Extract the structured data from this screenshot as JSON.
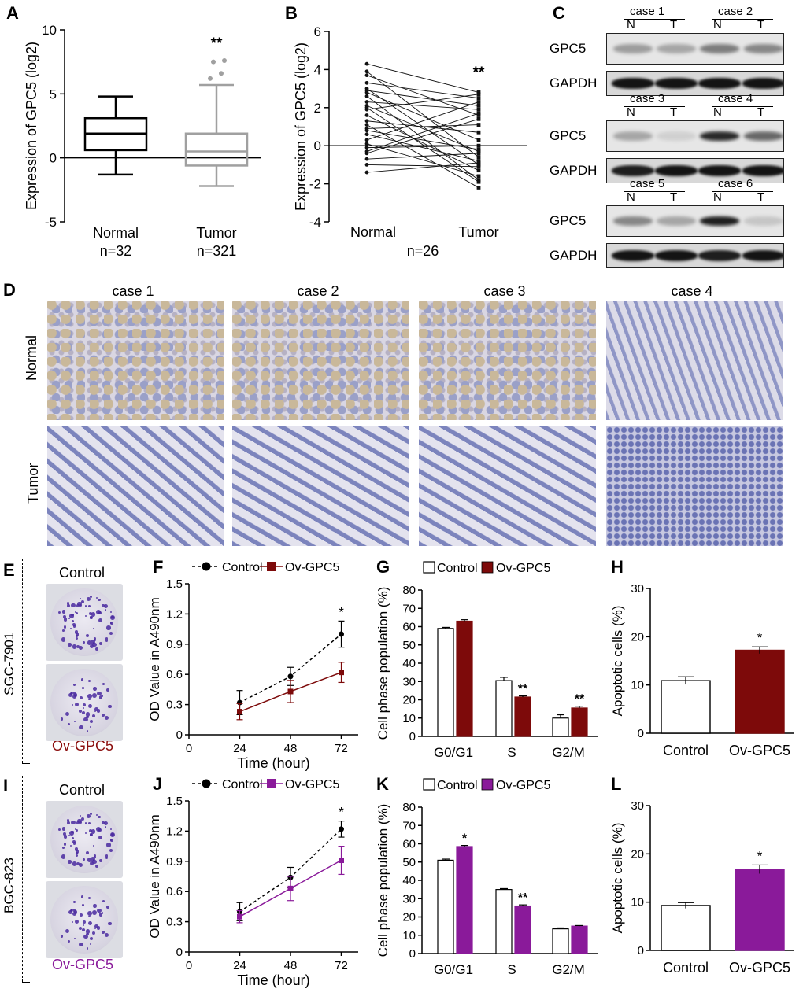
{
  "panels": {
    "A": {
      "label": "A",
      "ylabel": "Expression of GPC5 (log2)",
      "yticks": [
        "10",
        "5",
        "0",
        "-5"
      ],
      "groups": [
        {
          "name": "Normal",
          "n": "n=32",
          "min": -1.3,
          "q1": 0.6,
          "median": 1.9,
          "q3": 3.1,
          "max": 4.8
        },
        {
          "name": "Tumor",
          "n": "n=321",
          "min": -2.2,
          "q1": -0.6,
          "median": 0.5,
          "q3": 1.9,
          "max": 5.7,
          "outliers": [
            6.2,
            6.6,
            7.5,
            7.6
          ]
        }
      ],
      "sig": "**",
      "chart_data": {
        "type": "box",
        "categories": [
          "Normal",
          "Tumor"
        ],
        "ylim": [
          -5,
          10
        ],
        "ylabel": "Expression of GPC5 (log2)"
      }
    },
    "B": {
      "label": "B",
      "ylabel": "Expression of GPC5 (log2)",
      "yticks": [
        "6",
        "4",
        "2",
        "0",
        "-2",
        "-4"
      ],
      "xlabels": [
        "Normal",
        "Tumor"
      ],
      "n": "n=26",
      "sig": "**",
      "chart_data": {
        "type": "line",
        "ylim": [
          -4,
          6
        ],
        "normal": [
          4.3,
          3.9,
          3.7,
          3.3,
          3.0,
          2.8,
          2.6,
          2.3,
          2.1,
          1.9,
          1.6,
          1.3,
          1.1,
          0.9,
          0.6,
          0.3,
          0.1,
          -0.1,
          -0.4,
          -0.7,
          -1.0,
          -1.4,
          2.9,
          2.0,
          0.8,
          -0.3
        ],
        "tumor": [
          2.8,
          -0.6,
          1.6,
          2.5,
          -1.0,
          0.3,
          -1.8,
          1.9,
          -0.3,
          2.7,
          -1.3,
          0.7,
          -2.2,
          1.1,
          -0.8,
          2.3,
          -1.6,
          0.0,
          1.4,
          -0.4,
          -1.1,
          -0.9,
          2.1,
          -1.9,
          -0.2,
          1.7
        ]
      }
    },
    "C": {
      "label": "C",
      "rows": [
        {
          "cases": [
            "case 1",
            "case 2"
          ],
          "nt": [
            "N",
            "T",
            "N",
            "T"
          ],
          "gpc5": [
            0.35,
            0.3,
            0.5,
            0.45
          ],
          "gapdh": [
            0.95,
            0.95,
            0.95,
            0.95
          ]
        },
        {
          "cases": [
            "case 3",
            "case 4"
          ],
          "nt": [
            "N",
            "T",
            "N",
            "T"
          ],
          "gpc5": [
            0.3,
            0.1,
            0.9,
            0.6
          ],
          "gapdh": [
            0.9,
            0.95,
            0.95,
            0.95
          ]
        },
        {
          "cases": [
            "case 5",
            "case 6"
          ],
          "nt": [
            "N",
            "T",
            "N",
            "T"
          ],
          "gpc5": [
            0.45,
            0.3,
            0.95,
            0.15
          ],
          "gapdh": [
            0.95,
            0.95,
            0.9,
            0.95
          ]
        }
      ],
      "gpc5_label": "GPC5",
      "gapdh_label": "GAPDH"
    },
    "D": {
      "label": "D",
      "cases": [
        "case 1",
        "case 2",
        "case 3",
        "case 4"
      ],
      "rows": [
        "Normal",
        "Tumor"
      ]
    },
    "E": {
      "label": "E",
      "cell_line": "SGC-7901",
      "control": "Control",
      "treatment": "Ov-GPC5",
      "treat_color": "#8b0e0e"
    },
    "F": {
      "label": "F",
      "legend": [
        "Control",
        "Ov-GPC5"
      ],
      "ylabel": "OD Value in A490nm",
      "xlabel": "Time (hour)",
      "yticks": [
        "1.5",
        "1.2",
        "0.9",
        "0.6",
        "0.3",
        "0"
      ],
      "xticks": [
        "0",
        "24",
        "48",
        "72"
      ],
      "sig": "*",
      "chart_data": {
        "type": "line",
        "x": [
          24,
          48,
          72
        ],
        "xlim": [
          0,
          80
        ],
        "ylim": [
          0,
          1.5
        ],
        "series": [
          {
            "name": "Control",
            "values": [
              0.32,
              0.58,
              1.0
            ],
            "err": [
              0.12,
              0.09,
              0.13
            ]
          },
          {
            "name": "Ov-GPC5",
            "values": [
              0.23,
              0.43,
              0.62
            ],
            "err": [
              0.08,
              0.11,
              0.1
            ]
          }
        ]
      }
    },
    "G": {
      "label": "G",
      "legend": [
        "Control",
        "Ov-GPC5"
      ],
      "ylabel": "Cell phase population (%)",
      "yticks": [
        "80",
        "70",
        "60",
        "50",
        "40",
        "30",
        "20",
        "10",
        "0"
      ],
      "categories": [
        "G0/G1",
        "S",
        "G2/M"
      ],
      "sigs": [
        "",
        "**",
        "**"
      ],
      "chart_data": {
        "type": "bar",
        "ylim": [
          0,
          80
        ],
        "series": [
          {
            "name": "Control",
            "values": [
              59,
              30.5,
              10
            ],
            "err": [
              0.6,
              1.8,
              1.8
            ]
          },
          {
            "name": "Ov-GPC5",
            "values": [
              63,
              21.5,
              15.5
            ],
            "err": [
              0.8,
              0.6,
              1.0
            ]
          }
        ]
      }
    },
    "H": {
      "label": "H",
      "ylabel": "Apoptotic cells (%)",
      "yticks": [
        "30",
        "20",
        "10",
        "0"
      ],
      "categories": [
        "Control",
        "Ov-GPC5"
      ],
      "sig": "*",
      "chart_data": {
        "type": "bar",
        "ylim": [
          0,
          30
        ],
        "values": [
          10.9,
          17.2
        ],
        "err": [
          0.8,
          0.7
        ]
      }
    },
    "I": {
      "label": "I",
      "cell_line": "BGC-823",
      "control": "Control",
      "treatment": "Ov-GPC5",
      "treat_color": "#8a1a9a"
    },
    "J": {
      "label": "J",
      "legend": [
        "Control",
        "Ov-GPC5"
      ],
      "ylabel": "OD Value in A490nm",
      "xlabel": "Time (hour)",
      "yticks": [
        "1.5",
        "1.2",
        "0.9",
        "0.6",
        "0.3",
        "0"
      ],
      "xticks": [
        "0",
        "24",
        "48",
        "72"
      ],
      "sig": "*",
      "chart_data": {
        "type": "line",
        "x": [
          24,
          48,
          72
        ],
        "xlim": [
          0,
          80
        ],
        "ylim": [
          0,
          1.5
        ],
        "series": [
          {
            "name": "Control",
            "values": [
              0.4,
              0.74,
              1.22
            ],
            "err": [
              0.09,
              0.1,
              0.08
            ]
          },
          {
            "name": "Ov-GPC5",
            "values": [
              0.35,
              0.63,
              0.91
            ],
            "err": [
              0.06,
              0.12,
              0.14
            ]
          }
        ]
      }
    },
    "K": {
      "label": "K",
      "legend": [
        "Control",
        "Ov-GPC5"
      ],
      "ylabel": "Cell phase population (%)",
      "yticks": [
        "80",
        "70",
        "60",
        "50",
        "40",
        "30",
        "20",
        "10",
        "0"
      ],
      "categories": [
        "G0/G1",
        "S",
        "G2/M"
      ],
      "sigs": [
        "*",
        "**",
        ""
      ],
      "chart_data": {
        "type": "bar",
        "ylim": [
          0,
          80
        ],
        "series": [
          {
            "name": "Control",
            "values": [
              51,
              35,
              13.5
            ],
            "err": [
              0.6,
              0.5,
              0.5
            ]
          },
          {
            "name": "Ov-GPC5",
            "values": [
              58.5,
              26,
              15
            ],
            "err": [
              0.6,
              0.6,
              0.3
            ]
          }
        ]
      }
    },
    "L": {
      "label": "L",
      "ylabel": "Apoptotic cells (%)",
      "yticks": [
        "30",
        "20",
        "10",
        "0"
      ],
      "categories": [
        "Control",
        "Ov-GPC5"
      ],
      "sig": "*",
      "chart_data": {
        "type": "bar",
        "ylim": [
          0,
          30
        ],
        "values": [
          9.3,
          16.8
        ],
        "err": [
          0.6,
          0.9
        ]
      }
    }
  },
  "colors": {
    "maroon": "#7d0a0a",
    "purple": "#8a1a9a",
    "gray": "#a0a0a0"
  }
}
